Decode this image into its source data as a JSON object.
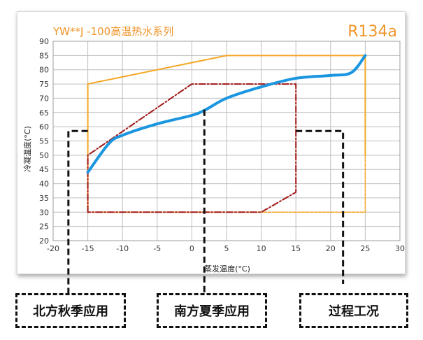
{
  "chart_data": {
    "type": "line",
    "title": "YW**J -100高温热水系列",
    "refrigerant": "R134a",
    "xlabel": "蒸发温度(°C)",
    "ylabel": "冷凝温度(°C)",
    "xlim": [
      -20,
      30
    ],
    "ylim": [
      20,
      90
    ],
    "x_ticks": [
      -20,
      -15,
      -10,
      -5,
      0,
      5,
      10,
      15,
      20,
      25,
      30
    ],
    "y_ticks": [
      20,
      25,
      30,
      35,
      40,
      45,
      50,
      55,
      60,
      65,
      70,
      75,
      80,
      85,
      90
    ],
    "grid": true,
    "series": [
      {
        "name": "",
        "style": "solid-orange-envelope",
        "color": "#f5a623",
        "x": [
          -15,
          -15,
          5,
          25,
          25
        ],
        "y": [
          30,
          75,
          85,
          85,
          50
        ]
      },
      {
        "name": "",
        "style": "dashed-orange-envelope",
        "color": "#f5a623",
        "x": [
          -15,
          25,
          25
        ],
        "y": [
          30,
          30,
          50
        ]
      },
      {
        "name": "",
        "style": "dashdot-darkred-envelope",
        "color": "#a01818",
        "x": [
          -15,
          -15,
          0,
          15,
          15,
          10,
          -15
        ],
        "y": [
          30,
          50,
          75,
          75,
          37,
          30,
          30
        ]
      },
      {
        "name": "",
        "style": "solid-blue-curve",
        "color": "#1a96e0",
        "x": [
          -15,
          -12,
          -10,
          -5,
          0,
          2,
          5,
          10,
          15,
          20,
          23,
          25
        ],
        "y": [
          44,
          54,
          57,
          61,
          64,
          66,
          70,
          74,
          77,
          78,
          79,
          85
        ]
      }
    ]
  },
  "captions": {
    "autumn": "北方秋季应用",
    "south_summer": "南方夏季应用",
    "process": "过程工况"
  },
  "colors": {
    "title": "#f0942a",
    "grid": "#bdbdbd",
    "callout": "#111111"
  }
}
